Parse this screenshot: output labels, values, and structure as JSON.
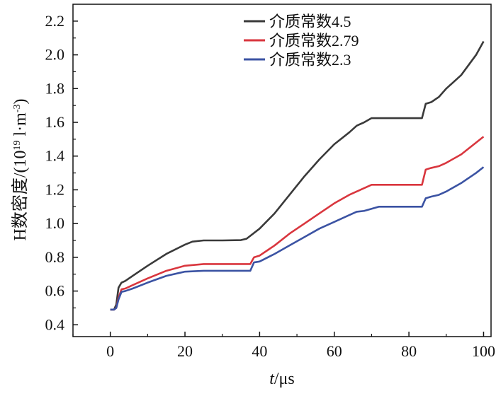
{
  "chart_data": {
    "type": "line",
    "xlabel_italic": "t",
    "xlabel_unit": "/μs",
    "ylabel_prefix": "H数密度/(10",
    "ylabel_exp": "19",
    "ylabel_mid": " l·m",
    "ylabel_exp2": "-3",
    "ylabel_suffix": ")",
    "xlim": [
      -10,
      102
    ],
    "ylim": [
      0.33,
      2.3
    ],
    "xticks": [
      0,
      20,
      40,
      60,
      80,
      100
    ],
    "yticks": [
      0.4,
      0.6,
      0.8,
      1.0,
      1.2,
      1.4,
      1.6,
      1.8,
      2.0,
      2.2
    ],
    "ytick_labels": [
      "0.4",
      "0.6",
      "0.8",
      "1.0",
      "1.2",
      "1.4",
      "1.6",
      "1.8",
      "2.0",
      "2.2"
    ],
    "legend_position": "top-right",
    "series": [
      {
        "name": "介质常数4.5",
        "color": "#3a3a3a",
        "points": [
          [
            0,
            0.49
          ],
          [
            1,
            0.49
          ],
          [
            1.6,
            0.52
          ],
          [
            2.2,
            0.62
          ],
          [
            3,
            0.65
          ],
          [
            4,
            0.66
          ],
          [
            6,
            0.69
          ],
          [
            10,
            0.75
          ],
          [
            15,
            0.82
          ],
          [
            20,
            0.875
          ],
          [
            22,
            0.893
          ],
          [
            25,
            0.9
          ],
          [
            30,
            0.9
          ],
          [
            35,
            0.902
          ],
          [
            36.5,
            0.91
          ],
          [
            40,
            0.97
          ],
          [
            44,
            1.06
          ],
          [
            48,
            1.17
          ],
          [
            52,
            1.28
          ],
          [
            56,
            1.38
          ],
          [
            60,
            1.47
          ],
          [
            64,
            1.54
          ],
          [
            66,
            1.58
          ],
          [
            68,
            1.6
          ],
          [
            70,
            1.625
          ],
          [
            75,
            1.625
          ],
          [
            80,
            1.625
          ],
          [
            83.5,
            1.625
          ],
          [
            84.5,
            1.71
          ],
          [
            86,
            1.72
          ],
          [
            88,
            1.75
          ],
          [
            90,
            1.8
          ],
          [
            94,
            1.88
          ],
          [
            98,
            2.0
          ],
          [
            100,
            2.08
          ]
        ]
      },
      {
        "name": "介质常数2.79",
        "color": "#d9363e",
        "points": [
          [
            0,
            0.49
          ],
          [
            1,
            0.49
          ],
          [
            1.6,
            0.5
          ],
          [
            2.2,
            0.56
          ],
          [
            3,
            0.61
          ],
          [
            4,
            0.615
          ],
          [
            6,
            0.635
          ],
          [
            10,
            0.675
          ],
          [
            15,
            0.72
          ],
          [
            20,
            0.75
          ],
          [
            25,
            0.76
          ],
          [
            30,
            0.76
          ],
          [
            37.5,
            0.76
          ],
          [
            38.5,
            0.8
          ],
          [
            40,
            0.81
          ],
          [
            44,
            0.87
          ],
          [
            48,
            0.94
          ],
          [
            52,
            1.0
          ],
          [
            56,
            1.06
          ],
          [
            60,
            1.12
          ],
          [
            64,
            1.17
          ],
          [
            66,
            1.19
          ],
          [
            68,
            1.21
          ],
          [
            70,
            1.23
          ],
          [
            75,
            1.23
          ],
          [
            80,
            1.23
          ],
          [
            83.5,
            1.23
          ],
          [
            84.5,
            1.32
          ],
          [
            86,
            1.33
          ],
          [
            88,
            1.34
          ],
          [
            90,
            1.36
          ],
          [
            94,
            1.41
          ],
          [
            98,
            1.48
          ],
          [
            100,
            1.515
          ]
        ]
      },
      {
        "name": "介质常数2.3",
        "color": "#3b53a3",
        "points": [
          [
            0,
            0.49
          ],
          [
            1,
            0.49
          ],
          [
            1.6,
            0.5
          ],
          [
            2.2,
            0.55
          ],
          [
            3,
            0.595
          ],
          [
            4,
            0.6
          ],
          [
            6,
            0.615
          ],
          [
            10,
            0.65
          ],
          [
            15,
            0.69
          ],
          [
            20,
            0.715
          ],
          [
            25,
            0.72
          ],
          [
            30,
            0.72
          ],
          [
            37.5,
            0.72
          ],
          [
            38.5,
            0.77
          ],
          [
            40,
            0.775
          ],
          [
            44,
            0.82
          ],
          [
            48,
            0.87
          ],
          [
            52,
            0.92
          ],
          [
            56,
            0.97
          ],
          [
            60,
            1.01
          ],
          [
            64,
            1.05
          ],
          [
            66,
            1.07
          ],
          [
            68,
            1.075
          ],
          [
            72,
            1.1
          ],
          [
            75,
            1.1
          ],
          [
            80,
            1.1
          ],
          [
            83.5,
            1.1
          ],
          [
            84.5,
            1.15
          ],
          [
            86,
            1.16
          ],
          [
            88,
            1.17
          ],
          [
            90,
            1.19
          ],
          [
            94,
            1.24
          ],
          [
            98,
            1.3
          ],
          [
            100,
            1.335
          ]
        ]
      }
    ]
  }
}
